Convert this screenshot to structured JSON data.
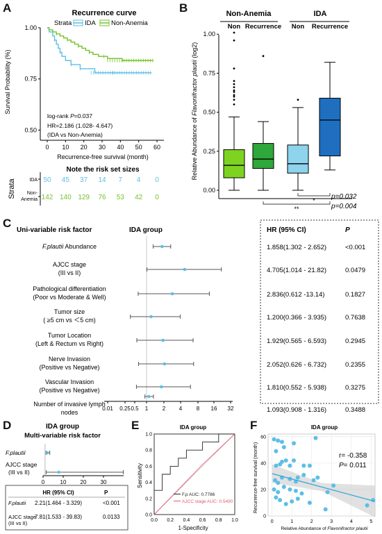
{
  "panels": {
    "A": "A",
    "B": "B",
    "C": "C",
    "D": "D",
    "E": "E",
    "F": "F"
  },
  "chart_data": [
    {
      "id": "A",
      "type": "line",
      "title": "Recurrence curve",
      "xlabel": "Recurrence-free survival (month)",
      "ylabel": "Survival Probability (%)",
      "xlim": [
        0,
        60
      ],
      "ylim": [
        0.45,
        1.0
      ],
      "x_ticks": [
        "0",
        "10",
        "20",
        "30",
        "40",
        "50",
        "60"
      ],
      "y_ticks": [
        "0.50",
        "0.75",
        "1.00"
      ],
      "legend": {
        "title": "Strata",
        "entries": [
          "IDA",
          "Non-Anemia"
        ]
      },
      "colors": {
        "IDA": "#5bbfe6",
        "Non-Anemia": "#76c22a"
      },
      "series": [
        {
          "name": "IDA",
          "points": [
            [
              0,
              1.0
            ],
            [
              1,
              0.98
            ],
            [
              3,
              0.96
            ],
            [
              4,
              0.94
            ],
            [
              5,
              0.92
            ],
            [
              6,
              0.9
            ],
            [
              7,
              0.88
            ],
            [
              8,
              0.86
            ],
            [
              10,
              0.84
            ],
            [
              13,
              0.82
            ],
            [
              15,
              0.82
            ],
            [
              17,
              0.82
            ],
            [
              18,
              0.8
            ],
            [
              24,
              0.8
            ],
            [
              26,
              0.78
            ],
            [
              36,
              0.78
            ],
            [
              57,
              0.78
            ]
          ]
        },
        {
          "name": "Non-Anemia",
          "points": [
            [
              0,
              1.0
            ],
            [
              1,
              0.99
            ],
            [
              3,
              0.98
            ],
            [
              5,
              0.97
            ],
            [
              7,
              0.96
            ],
            [
              9,
              0.95
            ],
            [
              11,
              0.94
            ],
            [
              13,
              0.93
            ],
            [
              15,
              0.92
            ],
            [
              17,
              0.91
            ],
            [
              19,
              0.9
            ],
            [
              21,
              0.89
            ],
            [
              23,
              0.88
            ],
            [
              25,
              0.87
            ],
            [
              28,
              0.86
            ],
            [
              31,
              0.86
            ],
            [
              33,
              0.85
            ],
            [
              38,
              0.85
            ],
            [
              41,
              0.84
            ],
            [
              58,
              0.84
            ]
          ]
        }
      ],
      "annotations": [
        "log-rank P=0.037",
        "HR=2.186 (1.028- 4.647)",
        "(IDA vs Non-Anemia)"
      ],
      "risk_table": {
        "title": "Note the risk set sizes",
        "ylabel": "Strata",
        "rows": [
          {
            "label": "IDA",
            "values": [
              "50",
              "45",
              "37",
              "14",
              "7",
              "4",
              "0"
            ]
          },
          {
            "label": "Non-Anemia",
            "values": [
              "142",
              "140",
              "129",
              "76",
              "53",
              "42",
              "0"
            ]
          }
        ]
      }
    },
    {
      "id": "B",
      "type": "box",
      "groups": [
        "Non-Anemia",
        "IDA"
      ],
      "categories": [
        "Non",
        "Recurrence",
        "Non",
        "Recurrence"
      ],
      "ylabel": "Relative Abundance of Flavonifractor plautii (log2)",
      "ylim": [
        0,
        1.05
      ],
      "y_ticks": [
        "0.00",
        "0.25",
        "0.50",
        "0.75",
        "1.00"
      ],
      "colors": [
        "#7ed321",
        "#2ea83a",
        "#8dd4ec",
        "#1f6fc0"
      ],
      "boxes": [
        {
          "min": 0.0,
          "q1": 0.08,
          "median": 0.16,
          "q3": 0.26,
          "max": 0.47,
          "outliers": [
            0.55,
            0.58,
            0.6,
            0.61,
            0.63,
            0.64,
            0.66,
            0.68,
            0.7,
            0.78,
            0.96,
            1.01
          ]
        },
        {
          "min": 0.0,
          "q1": 0.14,
          "median": 0.2,
          "q3": 0.3,
          "max": 0.44,
          "outliers": [
            0.86
          ]
        },
        {
          "min": 0.0,
          "q1": 0.11,
          "median": 0.17,
          "q3": 0.29,
          "max": 0.53,
          "outliers": [
            0.58
          ]
        },
        {
          "min": 0.13,
          "q1": 0.22,
          "median": 0.45,
          "q3": 0.59,
          "max": 0.82,
          "outliers": []
        }
      ],
      "significance": [
        {
          "stars": "*",
          "p": "p=0.032"
        },
        {
          "stars": "**",
          "p": "p=0.004"
        }
      ]
    },
    {
      "id": "C",
      "type": "forest",
      "title": "IDA group",
      "header_left": "Uni-variable risk factor",
      "header_hr": "HR (95% CI)",
      "header_p": "P",
      "x_ticks": [
        "0.01",
        "0.25",
        "0.5",
        "1",
        "2",
        "4",
        "8",
        "16",
        "32"
      ],
      "rows": [
        {
          "label1": "F.plautii",
          "label1b": " Abundance",
          "label2": "",
          "hr": 1.858,
          "lo": 1.302,
          "hi": 2.652,
          "text": "1.858(1.302 - 2.652)",
          "p": "<0.001"
        },
        {
          "label1": "AJCC stage",
          "label1b": "",
          "label2": "(III vs II)",
          "hr": 4.705,
          "lo": 1.014,
          "hi": 21.82,
          "text": "4.705(1.014 - 21.82)",
          "p": "0.0479"
        },
        {
          "label1": "Pathological differentiation",
          "label1b": "",
          "label2": "(Poor vs Moderate & Well)",
          "hr": 2.836,
          "lo": 0.612,
          "hi": 13.14,
          "text": "2.836(0.612 -13.14)",
          "p": "0.1827"
        },
        {
          "label1": "Tumor size",
          "label1b": "",
          "label2": "( ≥5 cm vs ＜5 cm)",
          "hr": 1.2,
          "lo": 0.366,
          "hi": 3.935,
          "text": "1.200(0.366 - 3.935)",
          "p": "0.7638"
        },
        {
          "label1": "Tumor Location",
          "label1b": "",
          "label2": "(Left & Rectum vs  Right)",
          "hr": 1.929,
          "lo": 0.565,
          "hi": 6.593,
          "text": "1.929(0.565 - 6.593)",
          "p": "0.2945"
        },
        {
          "label1": "Nerve Invasion",
          "label1b": "",
          "label2": "(Positive vs Negative)",
          "hr": 2.052,
          "lo": 0.626,
          "hi": 6.732,
          "text": "2.052(0.626 - 6.732)",
          "p": "0.2355"
        },
        {
          "label1": "Vascular Invasion",
          "label1b": "",
          "label2": "(Positive vs Negative)",
          "hr": 1.81,
          "lo": 0.552,
          "hi": 5.938,
          "text": "1.810(0.552 - 5.938)",
          "p": "0.3275"
        },
        {
          "label1": "Number of invasive lymph",
          "label1b": "",
          "label2": "nodes",
          "hr": 1.093,
          "lo": 0.908,
          "hi": 1.316,
          "text": "1.093(0.908 - 1.316)",
          "p": "0.3488"
        }
      ]
    },
    {
      "id": "D",
      "type": "forest",
      "title": "IDA group",
      "subtitle": "Multi-variable risk factor",
      "x_ticks": [
        "0",
        "10",
        "20",
        "30"
      ],
      "header_hr": "HR (95% CI)",
      "header_p": "P",
      "rows": [
        {
          "label1": "F.plautii",
          "label2": "",
          "hr": 2.21,
          "lo": 1.464,
          "hi": 3.329,
          "text": "2.21(1.464 - 3.329)",
          "p": "<0.001"
        },
        {
          "label1": "AJCC stage",
          "label2": "(III vs II)",
          "hr": 7.81,
          "lo": 1.533,
          "hi": 39.83,
          "text": "7.81(1.533 - 39.83)",
          "p": "0.0133"
        }
      ]
    },
    {
      "id": "E",
      "type": "line",
      "title": "IDA group",
      "xlabel": "1-Specificity",
      "ylabel": "Sensitivity",
      "xlim": [
        0,
        1
      ],
      "ylim": [
        0,
        1
      ],
      "ticks": [
        "0.0",
        "0.2",
        "0.4",
        "0.6",
        "0.8",
        "1.0"
      ],
      "series": [
        {
          "name": "F.p AUC: 0.7786",
          "color": "#222222",
          "points": [
            [
              0,
              0
            ],
            [
              0,
              0.3
            ],
            [
              0.1,
              0.3
            ],
            [
              0.1,
              0.5
            ],
            [
              0.2,
              0.5
            ],
            [
              0.2,
              0.6
            ],
            [
              0.3,
              0.6
            ],
            [
              0.3,
              0.7
            ],
            [
              0.4,
              0.7
            ],
            [
              0.4,
              0.8
            ],
            [
              0.6,
              0.8
            ],
            [
              0.6,
              0.9
            ],
            [
              0.8,
              0.9
            ],
            [
              0.8,
              1.0
            ],
            [
              1,
              1
            ]
          ]
        },
        {
          "name": "AJCC stage AUC: 0.5490",
          "color": "#e05a6e",
          "points": [
            [
              0,
              0
            ],
            [
              0.6,
              0.62
            ],
            [
              1,
              1
            ]
          ]
        }
      ]
    },
    {
      "id": "F",
      "type": "scatter",
      "title": "IDA group",
      "xlabel_prefix": "Relative Abundance of ",
      "xlabel_italic": "Flavonifractor plautii",
      "ylabel": "Recurrence-free survival (month)",
      "xlim": [
        -0.2,
        5.2
      ],
      "ylim": [
        0,
        62
      ],
      "x_ticks": [
        "0",
        "1",
        "2",
        "3",
        "4",
        "5"
      ],
      "y_ticks": [
        "0",
        "20",
        "40",
        "60"
      ],
      "r_label": "r= -0.358",
      "p_label": "P= 0.011",
      "points": [
        [
          0.1,
          58
        ],
        [
          0.3,
          57
        ],
        [
          0.5,
          56
        ],
        [
          0.2,
          49
        ],
        [
          0.6,
          52
        ],
        [
          1.1,
          55
        ],
        [
          2.2,
          59
        ],
        [
          0.2,
          38
        ],
        [
          0.4,
          39
        ],
        [
          0.5,
          41
        ],
        [
          0.7,
          42
        ],
        [
          0.9,
          38
        ],
        [
          1.1,
          42
        ],
        [
          1.6,
          38
        ],
        [
          1.9,
          38
        ],
        [
          0.15,
          27
        ],
        [
          0.3,
          25
        ],
        [
          0.5,
          29
        ],
        [
          0.9,
          28
        ],
        [
          1.2,
          26
        ],
        [
          1.3,
          29
        ],
        [
          1.6,
          31
        ],
        [
          2.1,
          27
        ],
        [
          2.3,
          29
        ],
        [
          0.1,
          20
        ],
        [
          0.3,
          18
        ],
        [
          0.6,
          22
        ],
        [
          0.9,
          20
        ],
        [
          1.2,
          19
        ],
        [
          1.5,
          17
        ],
        [
          2.8,
          18
        ],
        [
          0.2,
          14
        ],
        [
          0.4,
          12
        ],
        [
          0.7,
          9
        ],
        [
          1.0,
          11
        ],
        [
          1.3,
          13
        ],
        [
          1.9,
          10
        ],
        [
          2.7,
          5
        ],
        [
          3.1,
          23
        ],
        [
          4.8,
          8
        ],
        [
          5.1,
          12
        ]
      ],
      "fit": [
        [
          0,
          32
        ],
        [
          5.2,
          11
        ]
      ]
    }
  ]
}
